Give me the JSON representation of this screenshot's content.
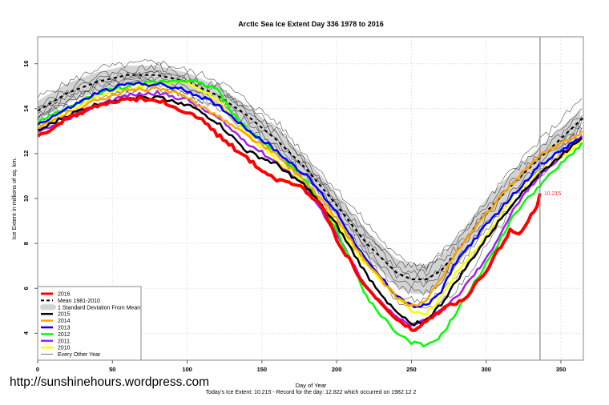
{
  "chart_data": {
    "type": "line",
    "title": "Arctic Sea Ice Extent Day 336 1978 to 2016",
    "xlabel": "Day of Year",
    "ylabel": "Ice Extent in millions of sq. km.",
    "xlim": [
      0,
      365
    ],
    "ylim": [
      2.8,
      17.2
    ],
    "xticks": [
      0,
      50,
      100,
      150,
      200,
      250,
      300,
      350
    ],
    "yticks": [
      4,
      6,
      8,
      10,
      12,
      14,
      16
    ],
    "grid": true,
    "legend_position": "bottom-left",
    "current_day": 336,
    "current_value_label": "10.215",
    "footer": "Today's Ice Extent: 10.215  - Record for the day: 12.822 which occurred on 1982 12 2",
    "mean": {
      "name": "Mean 1981-2010",
      "color": "#000000",
      "points": [
        [
          0,
          13.9
        ],
        [
          20,
          14.7
        ],
        [
          40,
          15.2
        ],
        [
          60,
          15.5
        ],
        [
          80,
          15.5
        ],
        [
          100,
          15.2
        ],
        [
          120,
          14.6
        ],
        [
          140,
          13.7
        ],
        [
          160,
          12.6
        ],
        [
          180,
          11.3
        ],
        [
          200,
          9.7
        ],
        [
          220,
          8.0
        ],
        [
          240,
          6.7
        ],
        [
          250,
          6.4
        ],
        [
          260,
          6.4
        ],
        [
          270,
          6.8
        ],
        [
          280,
          7.6
        ],
        [
          300,
          9.4
        ],
        [
          320,
          10.8
        ],
        [
          336,
          11.8
        ],
        [
          365,
          13.6
        ]
      ]
    },
    "std_band": {
      "name": "1 Standard Deviation From Mean",
      "color": "#d3d3d3",
      "sd": [
        [
          0,
          0.45
        ],
        [
          100,
          0.4
        ],
        [
          200,
          0.5
        ],
        [
          230,
          0.6
        ],
        [
          260,
          0.65
        ],
        [
          290,
          0.6
        ],
        [
          336,
          0.5
        ],
        [
          365,
          0.45
        ]
      ]
    },
    "series": [
      {
        "name": "2016",
        "color": "#ff0000",
        "width": 4,
        "points": [
          [
            0,
            12.85
          ],
          [
            10,
            13.1
          ],
          [
            20,
            13.6
          ],
          [
            40,
            14.1
          ],
          [
            60,
            14.45
          ],
          [
            80,
            14.4
          ],
          [
            100,
            13.8
          ],
          [
            110,
            13.5
          ],
          [
            121,
            12.8
          ],
          [
            140,
            11.8
          ],
          [
            157,
            10.9
          ],
          [
            175,
            10.6
          ],
          [
            190,
            9.7
          ],
          [
            200,
            8.2
          ],
          [
            220,
            6.0
          ],
          [
            240,
            4.6
          ],
          [
            251,
            4.1
          ],
          [
            260,
            4.5
          ],
          [
            271,
            5.1
          ],
          [
            286,
            5.5
          ],
          [
            303,
            7.1
          ],
          [
            316,
            8.6
          ],
          [
            323,
            8.5
          ],
          [
            329,
            9.1
          ],
          [
            335,
            9.8
          ],
          [
            336,
            10.215
          ]
        ]
      },
      {
        "name": "2015",
        "color": "#000000",
        "width": 2.5,
        "points": [
          [
            0,
            13.0
          ],
          [
            20,
            13.7
          ],
          [
            40,
            14.2
          ],
          [
            60,
            14.5
          ],
          [
            80,
            14.5
          ],
          [
            100,
            14.2
          ],
          [
            120,
            13.4
          ],
          [
            140,
            12.1
          ],
          [
            160,
            11.5
          ],
          [
            180,
            10.5
          ],
          [
            200,
            8.8
          ],
          [
            220,
            6.6
          ],
          [
            240,
            4.9
          ],
          [
            250,
            4.4
          ],
          [
            260,
            4.6
          ],
          [
            270,
            5.3
          ],
          [
            280,
            6.3
          ],
          [
            300,
            8.2
          ],
          [
            320,
            10.0
          ],
          [
            336,
            11.1
          ],
          [
            365,
            12.8
          ]
        ]
      },
      {
        "name": "2014",
        "color": "#ffa500",
        "width": 2.5,
        "points": [
          [
            0,
            13.1
          ],
          [
            20,
            13.8
          ],
          [
            40,
            14.4
          ],
          [
            60,
            14.8
          ],
          [
            80,
            14.9
          ],
          [
            100,
            14.5
          ],
          [
            120,
            13.7
          ],
          [
            140,
            12.8
          ],
          [
            160,
            11.9
          ],
          [
            180,
            10.7
          ],
          [
            200,
            9.1
          ],
          [
            220,
            7.1
          ],
          [
            240,
            5.6
          ],
          [
            250,
            5.2
          ],
          [
            260,
            5.4
          ],
          [
            270,
            6.5
          ],
          [
            280,
            7.6
          ],
          [
            300,
            9.3
          ],
          [
            320,
            10.9
          ],
          [
            336,
            11.9
          ],
          [
            365,
            13.0
          ]
        ]
      },
      {
        "name": "2013",
        "color": "#0000ff",
        "width": 2.5,
        "points": [
          [
            0,
            13.3
          ],
          [
            20,
            14.0
          ],
          [
            40,
            14.7
          ],
          [
            60,
            15.1
          ],
          [
            80,
            15.1
          ],
          [
            100,
            14.8
          ],
          [
            120,
            14.2
          ],
          [
            140,
            13.1
          ],
          [
            160,
            12.1
          ],
          [
            180,
            11.0
          ],
          [
            200,
            9.4
          ],
          [
            220,
            7.2
          ],
          [
            240,
            5.7
          ],
          [
            250,
            5.2
          ],
          [
            260,
            5.2
          ],
          [
            270,
            5.9
          ],
          [
            280,
            7.2
          ],
          [
            300,
            8.8
          ],
          [
            320,
            10.3
          ],
          [
            336,
            11.5
          ],
          [
            365,
            12.8
          ]
        ]
      },
      {
        "name": "2012",
        "color": "#00ff00",
        "width": 2.5,
        "points": [
          [
            0,
            13.4
          ],
          [
            20,
            14.0
          ],
          [
            40,
            14.7
          ],
          [
            60,
            15.0
          ],
          [
            80,
            15.2
          ],
          [
            100,
            15.3
          ],
          [
            120,
            14.9
          ],
          [
            130,
            13.8
          ],
          [
            140,
            13.1
          ],
          [
            160,
            12.1
          ],
          [
            180,
            10.7
          ],
          [
            200,
            8.6
          ],
          [
            220,
            5.6
          ],
          [
            240,
            4.0
          ],
          [
            250,
            3.6
          ],
          [
            260,
            3.4
          ],
          [
            270,
            3.9
          ],
          [
            280,
            4.9
          ],
          [
            300,
            7.1
          ],
          [
            320,
            9.4
          ],
          [
            336,
            10.6
          ],
          [
            365,
            12.5
          ]
        ]
      },
      {
        "name": "2011",
        "color": "#a020f0",
        "width": 2.5,
        "points": [
          [
            0,
            12.9
          ],
          [
            20,
            13.5
          ],
          [
            40,
            14.2
          ],
          [
            60,
            14.6
          ],
          [
            80,
            14.7
          ],
          [
            100,
            14.4
          ],
          [
            120,
            13.6
          ],
          [
            140,
            12.5
          ],
          [
            160,
            11.6
          ],
          [
            180,
            10.5
          ],
          [
            200,
            8.4
          ],
          [
            220,
            6.0
          ],
          [
            240,
            4.7
          ],
          [
            250,
            4.4
          ],
          [
            260,
            4.6
          ],
          [
            270,
            5.0
          ],
          [
            280,
            5.6
          ],
          [
            300,
            7.3
          ],
          [
            320,
            9.7
          ],
          [
            336,
            11.0
          ],
          [
            365,
            12.9
          ]
        ]
      },
      {
        "name": "2010",
        "color": "#ffff00",
        "width": 2.5,
        "points": [
          [
            0,
            13.2
          ],
          [
            20,
            13.8
          ],
          [
            40,
            14.6
          ],
          [
            60,
            14.9
          ],
          [
            80,
            15.1
          ],
          [
            100,
            15.2
          ],
          [
            120,
            14.4
          ],
          [
            140,
            12.9
          ],
          [
            160,
            11.7
          ],
          [
            180,
            10.5
          ],
          [
            200,
            8.9
          ],
          [
            220,
            7.0
          ],
          [
            240,
            5.6
          ],
          [
            250,
            5.0
          ],
          [
            260,
            4.9
          ],
          [
            270,
            5.6
          ],
          [
            280,
            6.7
          ],
          [
            300,
            8.3
          ],
          [
            320,
            10.3
          ],
          [
            336,
            11.2
          ],
          [
            365,
            12.6
          ]
        ]
      }
    ],
    "every_other_year": {
      "name": "Every Other Year",
      "color": "#000000",
      "lines": [
        [
          [
            0,
            14.5
          ],
          [
            40,
            15.8
          ],
          [
            80,
            16.1
          ],
          [
            120,
            15.3
          ],
          [
            160,
            13.4
          ],
          [
            200,
            10.4
          ],
          [
            240,
            7.4
          ],
          [
            260,
            7.0
          ],
          [
            280,
            8.2
          ],
          [
            320,
            11.5
          ],
          [
            365,
            14.5
          ]
        ],
        [
          [
            0,
            14.2
          ],
          [
            40,
            15.5
          ],
          [
            80,
            15.9
          ],
          [
            120,
            15.0
          ],
          [
            160,
            13.0
          ],
          [
            200,
            10.1
          ],
          [
            240,
            7.1
          ],
          [
            260,
            6.9
          ],
          [
            280,
            8.0
          ],
          [
            320,
            11.3
          ],
          [
            365,
            14.1
          ]
        ],
        [
          [
            0,
            14.0
          ],
          [
            40,
            15.3
          ],
          [
            80,
            15.6
          ],
          [
            120,
            14.8
          ],
          [
            160,
            12.8
          ],
          [
            200,
            9.9
          ],
          [
            240,
            6.9
          ],
          [
            260,
            6.7
          ],
          [
            280,
            7.8
          ],
          [
            320,
            11.0
          ],
          [
            365,
            13.8
          ]
        ],
        [
          [
            0,
            13.8
          ],
          [
            40,
            15.1
          ],
          [
            80,
            15.4
          ],
          [
            120,
            14.6
          ],
          [
            160,
            12.6
          ],
          [
            200,
            9.6
          ],
          [
            240,
            6.6
          ],
          [
            260,
            6.4
          ],
          [
            280,
            7.5
          ],
          [
            320,
            10.8
          ],
          [
            365,
            13.6
          ]
        ],
        [
          [
            0,
            13.6
          ],
          [
            40,
            14.9
          ],
          [
            80,
            15.2
          ],
          [
            120,
            14.4
          ],
          [
            160,
            12.4
          ],
          [
            200,
            9.3
          ],
          [
            240,
            6.3
          ],
          [
            260,
            6.1
          ],
          [
            280,
            7.2
          ],
          [
            320,
            10.5
          ],
          [
            365,
            13.4
          ]
        ],
        [
          [
            0,
            13.5
          ],
          [
            40,
            14.7
          ],
          [
            80,
            15.0
          ],
          [
            120,
            14.2
          ],
          [
            160,
            12.2
          ],
          [
            200,
            9.0
          ],
          [
            240,
            6.0
          ],
          [
            260,
            5.8
          ],
          [
            280,
            6.9
          ],
          [
            320,
            10.2
          ],
          [
            365,
            13.2
          ]
        ],
        [
          [
            0,
            13.3
          ],
          [
            40,
            14.5
          ],
          [
            80,
            14.9
          ],
          [
            120,
            14.1
          ],
          [
            160,
            12.0
          ],
          [
            200,
            8.8
          ],
          [
            240,
            5.6
          ],
          [
            260,
            5.4
          ],
          [
            280,
            6.4
          ],
          [
            320,
            10.0
          ],
          [
            365,
            13.0
          ]
        ],
        [
          [
            0,
            13.7
          ],
          [
            40,
            15.0
          ],
          [
            80,
            15.7
          ],
          [
            120,
            14.9
          ],
          [
            160,
            13.2
          ],
          [
            200,
            9.8
          ],
          [
            240,
            5.4
          ],
          [
            260,
            5.0
          ],
          [
            280,
            5.9
          ],
          [
            320,
            9.8
          ],
          [
            365,
            13.3
          ]
        ]
      ]
    }
  },
  "watermark_url": "http://sunshinehours.wordpress.com"
}
